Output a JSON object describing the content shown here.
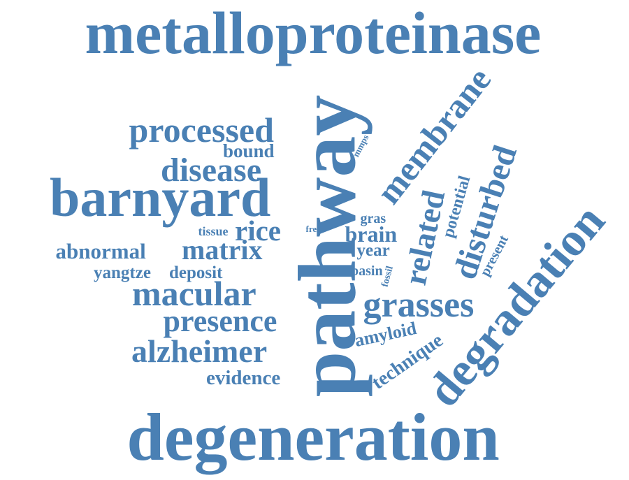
{
  "cloud": {
    "color": "#4a80b4",
    "words": [
      {
        "text": "metalloproteinase",
        "id": "metalloproteinase"
      },
      {
        "text": "pathway",
        "id": "pathway"
      },
      {
        "text": "degeneration",
        "id": "degeneration"
      },
      {
        "text": "barnyard",
        "id": "barnyard"
      },
      {
        "text": "degradation",
        "id": "degradation"
      },
      {
        "text": "membrane",
        "id": "membrane"
      },
      {
        "text": "processed",
        "id": "processed"
      },
      {
        "text": "disease",
        "id": "disease"
      },
      {
        "text": "bound",
        "id": "bound"
      },
      {
        "text": "macular",
        "id": "macular"
      },
      {
        "text": "presence",
        "id": "presence"
      },
      {
        "text": "alzheimer",
        "id": "alzheimer"
      },
      {
        "text": "evidence",
        "id": "evidence"
      },
      {
        "text": "abnormal",
        "id": "abnormal"
      },
      {
        "text": "matrix",
        "id": "matrix"
      },
      {
        "text": "rice",
        "id": "rice"
      },
      {
        "text": "tissue",
        "id": "tissue"
      },
      {
        "text": "free",
        "id": "free"
      },
      {
        "text": "yangtze",
        "id": "yangtze"
      },
      {
        "text": "deposit",
        "id": "deposit"
      },
      {
        "text": "grasses",
        "id": "grasses"
      },
      {
        "text": "brain",
        "id": "brain"
      },
      {
        "text": "year",
        "id": "year"
      },
      {
        "text": "gras",
        "id": "gras"
      },
      {
        "text": "basin",
        "id": "basin"
      },
      {
        "text": "amyloid",
        "id": "amyloid"
      },
      {
        "text": "technique",
        "id": "technique"
      },
      {
        "text": "related",
        "id": "related"
      },
      {
        "text": "disturbed",
        "id": "disturbed"
      },
      {
        "text": "potential",
        "id": "potential"
      },
      {
        "text": "present",
        "id": "present"
      },
      {
        "text": "fossil",
        "id": "fossil"
      },
      {
        "text": "mmps",
        "id": "mmps"
      }
    ]
  }
}
